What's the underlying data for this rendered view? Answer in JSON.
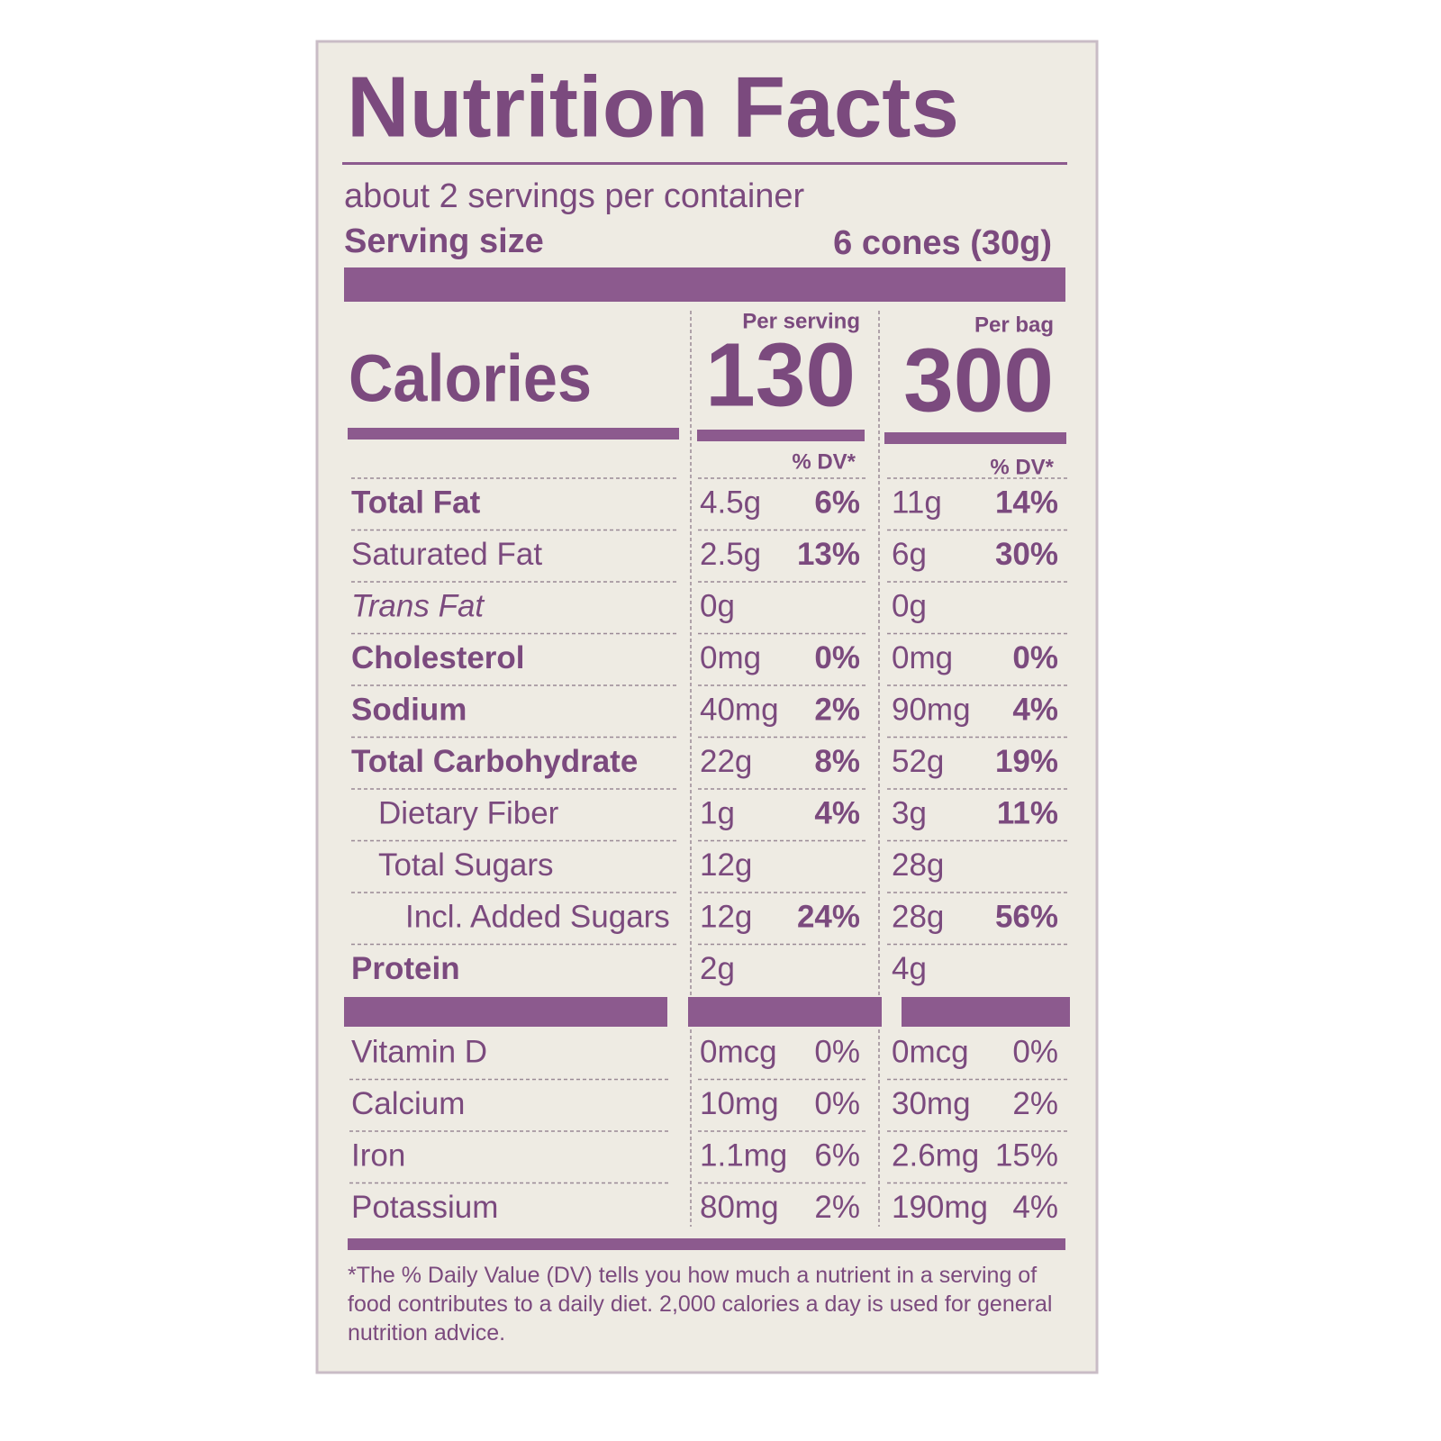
{
  "title": "Nutrition Facts",
  "servings": "about 2 servings per container",
  "serving_size": {
    "label": "Serving size",
    "value": "6 cones (30g)"
  },
  "columns": [
    "Per serving",
    "Per bag"
  ],
  "calories": {
    "label": "Calories",
    "values": [
      130,
      300
    ]
  },
  "dv_header": "% DV*",
  "nutrients": [
    {
      "name": "Total Fat",
      "style": "bold",
      "indent": 0,
      "serving": [
        "4.5g",
        "6%"
      ],
      "bag": [
        "11g",
        "14%"
      ]
    },
    {
      "name": "Saturated Fat",
      "style": "normal",
      "indent": 0,
      "serving": [
        "2.5g",
        "13%"
      ],
      "bag": [
        "6g",
        "30%"
      ]
    },
    {
      "name": "Trans Fat",
      "style": "italic",
      "indent": 0,
      "serving": [
        "0g"
      ],
      "bag": [
        "0g"
      ]
    },
    {
      "name": "Cholesterol",
      "style": "bold",
      "indent": 0,
      "serving": [
        "0mg",
        "0%"
      ],
      "bag": [
        "0mg",
        "0%"
      ]
    },
    {
      "name": "Sodium",
      "style": "bold",
      "indent": 0,
      "serving": [
        "40mg",
        "2%"
      ],
      "bag": [
        "90mg",
        "4%"
      ]
    },
    {
      "name": "Total Carbohydrate",
      "style": "bold",
      "indent": 0,
      "serving": [
        "22g",
        "8%"
      ],
      "bag": [
        "52g",
        "19%"
      ]
    },
    {
      "name": "Dietary Fiber",
      "style": "normal",
      "indent": 1,
      "serving": [
        "1g",
        "4%"
      ],
      "bag": [
        "3g",
        "11%"
      ]
    },
    {
      "name": "Total Sugars",
      "style": "normal",
      "indent": 1,
      "serving": [
        "12g"
      ],
      "bag": [
        "28g"
      ]
    },
    {
      "name": "Incl. Added Sugars",
      "style": "normal",
      "indent": 2,
      "serving": [
        "12g",
        "24%"
      ],
      "bag": [
        "28g",
        "56%"
      ]
    },
    {
      "name": "Protein",
      "style": "bold",
      "indent": 0,
      "serving": [
        "2g"
      ],
      "bag": [
        "4g"
      ]
    }
  ],
  "vitamins": [
    {
      "name": "Vitamin D",
      "serving": [
        "0mcg",
        "0%"
      ],
      "bag": [
        "0mcg",
        "0%"
      ]
    },
    {
      "name": "Calcium",
      "serving": [
        "10mg",
        "0%"
      ],
      "bag": [
        "30mg",
        "2%"
      ]
    },
    {
      "name": "Iron",
      "serving": [
        "1.1mg",
        "6%"
      ],
      "bag": [
        "2.6mg",
        "15%"
      ]
    },
    {
      "name": "Potassium",
      "serving": [
        "80mg",
        "2%"
      ],
      "bag": [
        "190mg",
        "4%"
      ]
    }
  ],
  "footnote": "*The % Daily Value (DV) tells you how much a nutrient in a serving of food contributes to a daily diet. 2,000 calories a day is used for general nutrition advice."
}
